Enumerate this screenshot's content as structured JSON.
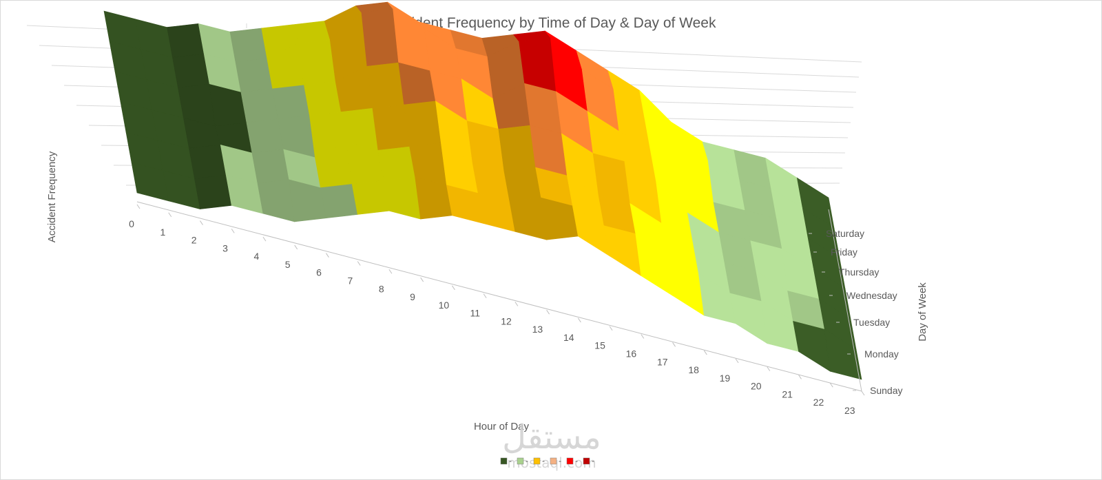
{
  "chart_data": {
    "type": "surface-3d",
    "title": "Accident Frequency by Time of Day & Day of Week",
    "xlabel": "Hour of Day",
    "ylabel": "Day of Week",
    "zlabel": "Accident Frequency",
    "hours": [
      "0",
      "1",
      "2",
      "3",
      "4",
      "5",
      "6",
      "7",
      "8",
      "9",
      "10",
      "11",
      "12",
      "13",
      "14",
      "15",
      "16",
      "17",
      "18",
      "19",
      "20",
      "21",
      "22",
      "23"
    ],
    "days": [
      "Sunday",
      "Monday",
      "Tuesday",
      "Wednesday",
      "Thursday",
      "Friday",
      "Saturday"
    ],
    "grid": true,
    "values": [
      [
        1,
        1,
        1,
        2,
        2,
        2,
        3,
        4,
        5,
        5,
        6,
        6,
        6,
        6,
        7,
        6,
        5,
        4,
        3,
        3,
        2,
        2,
        1,
        1
      ],
      [
        1,
        1,
        1,
        2,
        2,
        3,
        3,
        4,
        5,
        6,
        6,
        6,
        6,
        7,
        7,
        6,
        6,
        5,
        4,
        3,
        3,
        2,
        2,
        1
      ],
      [
        1,
        1,
        1,
        2,
        2,
        3,
        3,
        5,
        5,
        6,
        7,
        6,
        6,
        7,
        7,
        6,
        6,
        5,
        4,
        3,
        3,
        2,
        2,
        1
      ],
      [
        1,
        1,
        1,
        1,
        2,
        3,
        4,
        5,
        6,
        7,
        8,
        7,
        7,
        8,
        8,
        7,
        7,
        6,
        4,
        3,
        3,
        3,
        2,
        1
      ],
      [
        1,
        1,
        1,
        2,
        2,
        3,
        4,
        5,
        7,
        8,
        8,
        8,
        7,
        9,
        9,
        8,
        7,
        6,
        5,
        3,
        3,
        3,
        2,
        1
      ],
      [
        1,
        1,
        1,
        2,
        2,
        3,
        5,
        6,
        9,
        10,
        9,
        8,
        8,
        10,
        11,
        9,
        8,
        6,
        5,
        4,
        3,
        3,
        2,
        1
      ],
      [
        1,
        1,
        1,
        2,
        2,
        3,
        4,
        5,
        7,
        8,
        7,
        7,
        7,
        8,
        9,
        8,
        7,
        6,
        4,
        3,
        3,
        3,
        2,
        1
      ]
    ],
    "legend": [
      {
        "label": "-",
        "color": "#375623"
      },
      {
        "label": "-",
        "color": "#a9d18e"
      },
      {
        "label": "-",
        "color": "#ffc000"
      },
      {
        "label": "-",
        "color": "#f4b183"
      },
      {
        "label": "-",
        "color": "#ff0000"
      },
      {
        "label": "-",
        "color": "#c00000"
      }
    ],
    "band_colors": [
      "#375623",
      "#a9d18e",
      "#ffff00",
      "#ffc000",
      "#ed7d31",
      "#ff0000"
    ],
    "legend_position": "bottom"
  },
  "watermark": {
    "arabic": "مستقل",
    "latin": "mostaql.com"
  }
}
